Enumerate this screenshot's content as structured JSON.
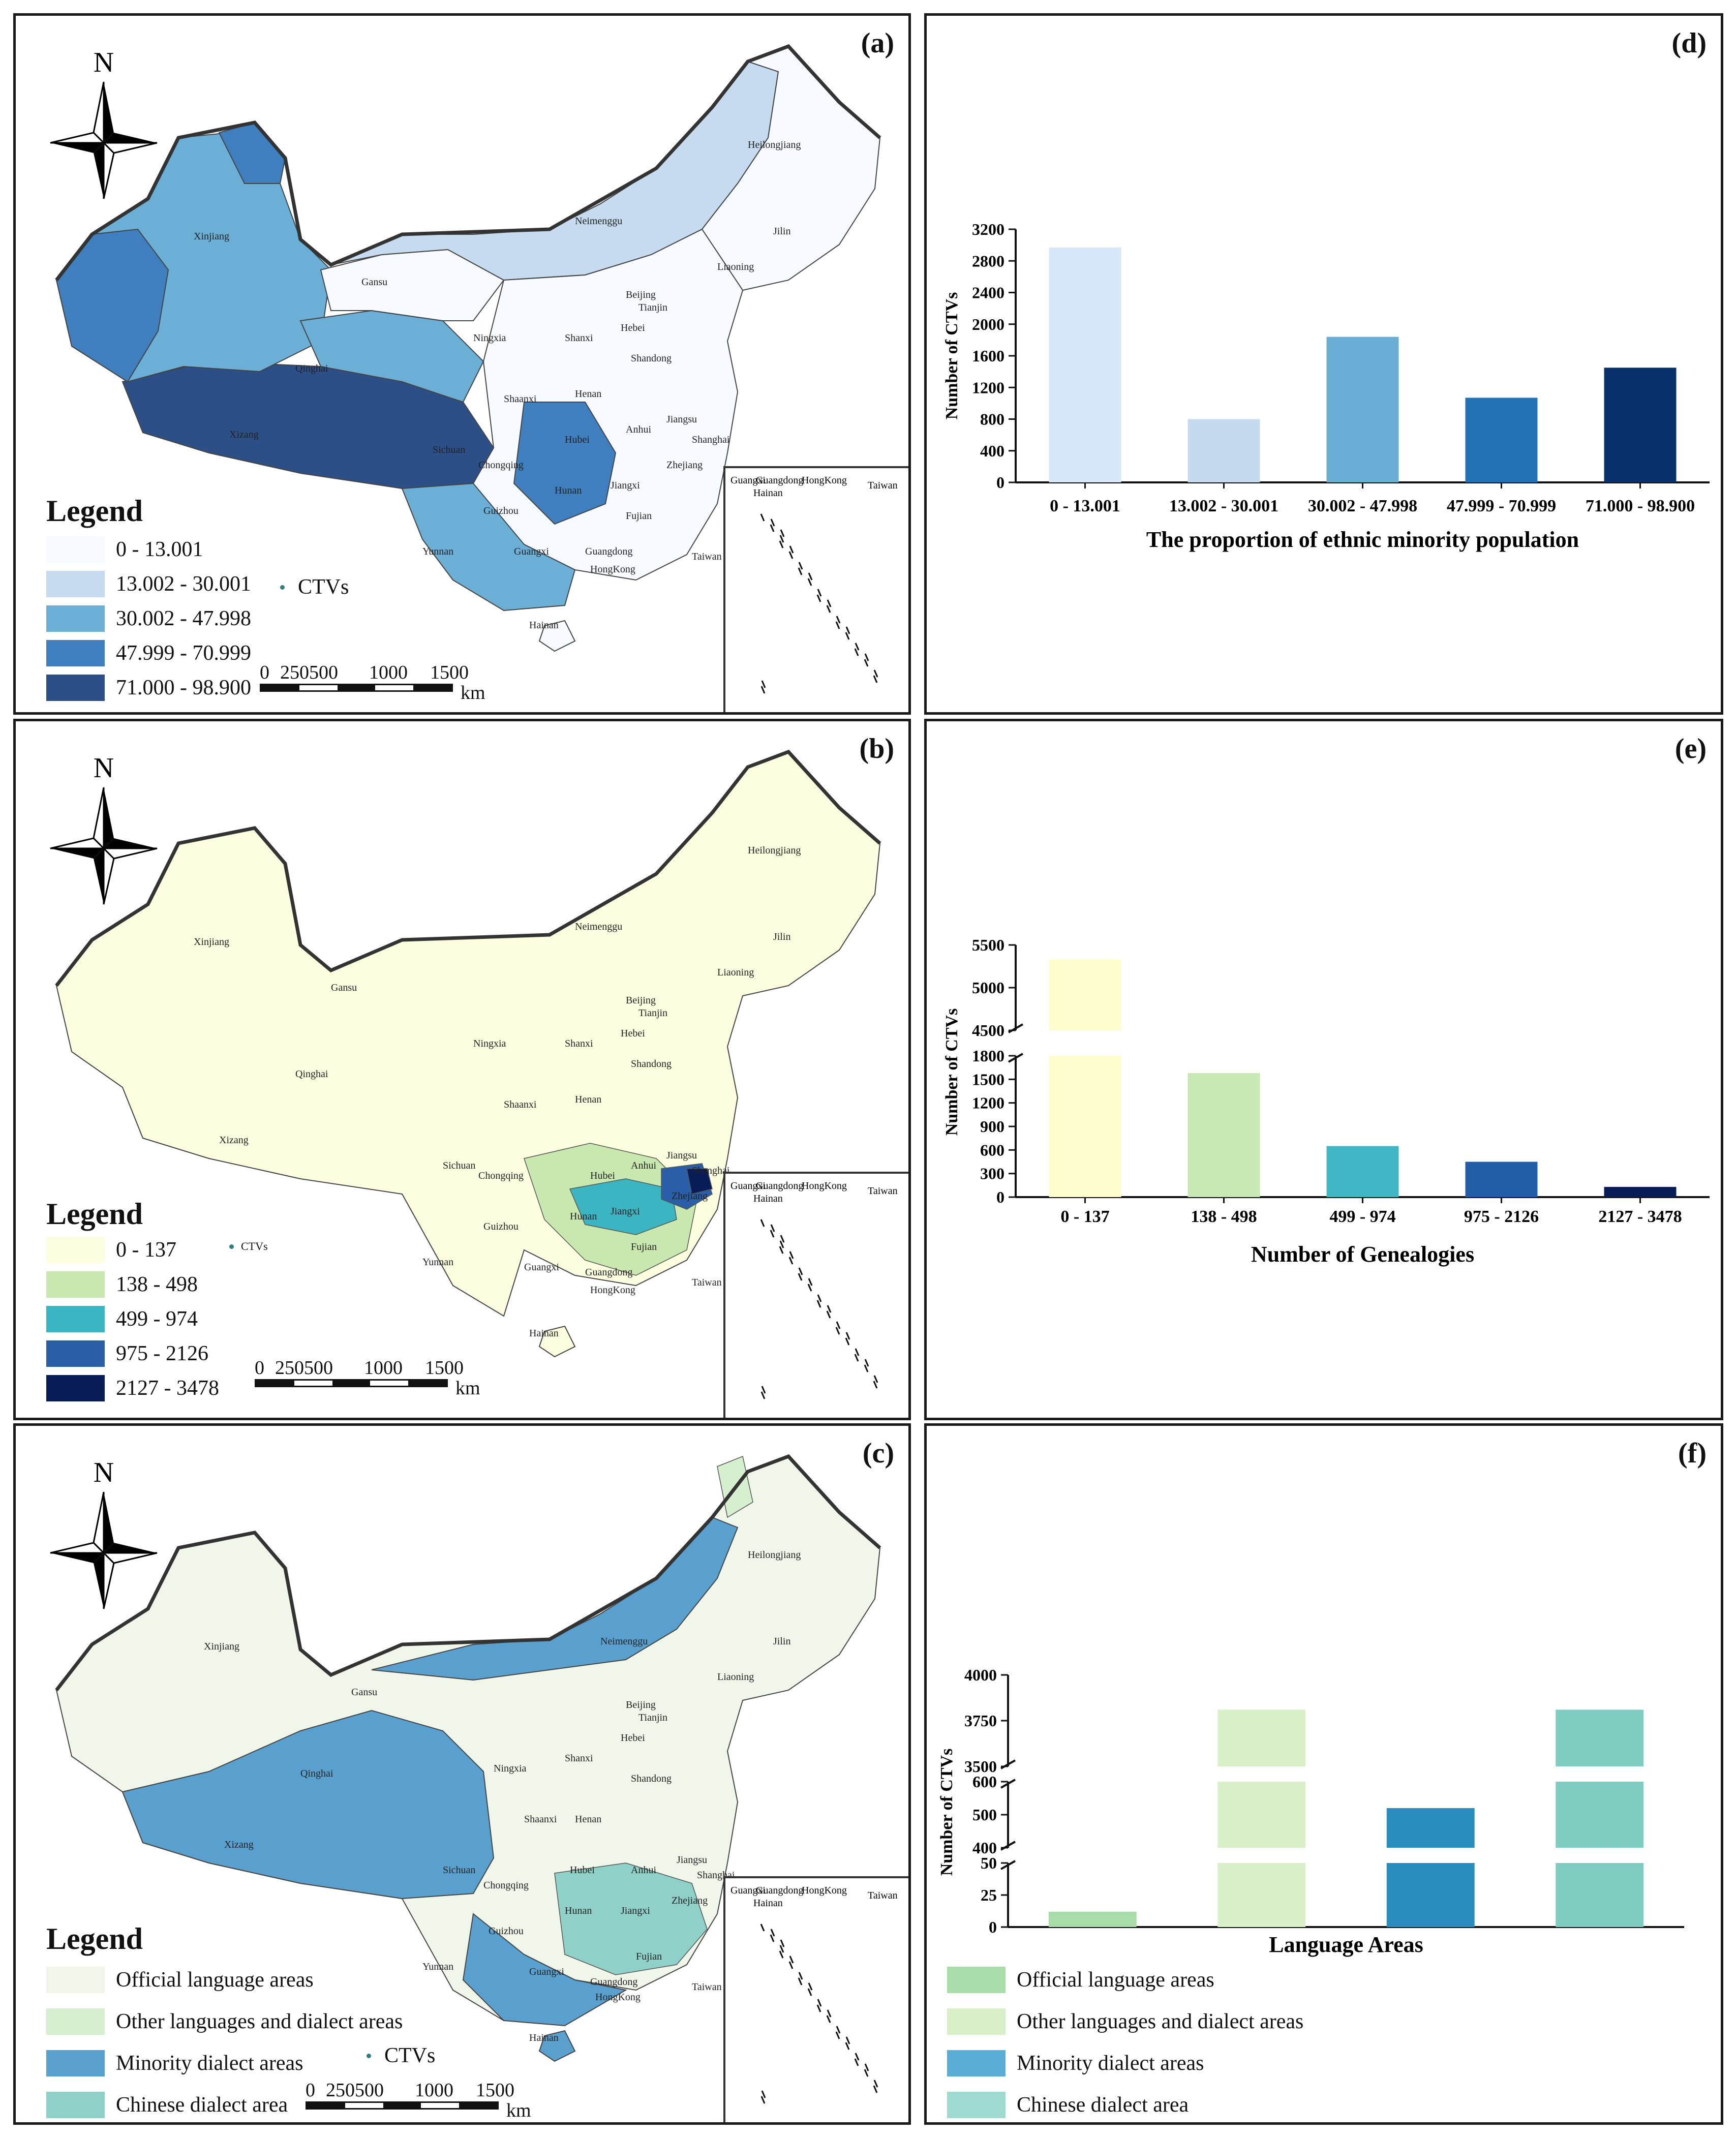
{
  "colors": {
    "a": [
      "#f7fbff",
      "#c6dbef",
      "#6baed6",
      "#3f7fbf",
      "#2b4f86"
    ],
    "b": [
      "#fdfde0",
      "#c9e8b0",
      "#3bb5c2",
      "#2a5ea8",
      "#081d58"
    ],
    "c": [
      "#f0f7ea",
      "#d5efcf",
      "#5aa0cf",
      "#8fd1c8"
    ],
    "d_bars": [
      "#d7e8fb",
      "#c6daef",
      "#6aaed6",
      "#2273b5",
      "#08306b"
    ],
    "e_bars": [
      "#fdfdce",
      "#c8e8b6",
      "#41b6c4",
      "#225ea8",
      "#081d58"
    ],
    "f_bars": [
      "#a8dca8",
      "#d9f0c8",
      "#2b8cbe",
      "#7fcdc0"
    ],
    "f_legend": [
      "#a8dca8",
      "#d9f0c8",
      "#5aaed6",
      "#9fdad0"
    ]
  },
  "map_common": {
    "north": "N",
    "ctvs_label": "CTVs",
    "scale_ticks": [
      "0",
      "250500",
      "1000",
      "1500"
    ],
    "scale_unit": "km",
    "inset_labels": [
      "Guangxi",
      "Guangdong",
      "Hainan",
      "HongKong",
      "Taiwan"
    ],
    "province_labels": [
      "Heilongjiang",
      "Jilin",
      "Liaoning",
      "Neimenggu",
      "Beijing",
      "Tianjin",
      "Hebei",
      "Shanxi",
      "Shandong",
      "Ningxia",
      "Gansu",
      "Xinjiang",
      "Qinghai",
      "Xizang",
      "Shaanxi",
      "Henan",
      "Sichuan",
      "Chongqing",
      "Hubei",
      "Anhui",
      "Jiangsu",
      "Shanghai",
      "Zhejiang",
      "Hunan",
      "Jiangxi",
      "Guizhou",
      "Yunnan",
      "Guangxi",
      "Guangdong",
      "Fujian",
      "Taiwan",
      "HongKong",
      "Hainan"
    ]
  },
  "panel_a": {
    "label": "(a)",
    "legend_title": "Legend",
    "classes": [
      "0 - 13.001",
      "13.002 - 30.001",
      "30.002 - 47.998",
      "47.999 - 70.999",
      "71.000 - 98.900"
    ]
  },
  "panel_b": {
    "label": "(b)",
    "legend_title": "Legend",
    "classes": [
      "0 - 137",
      "138 - 498",
      "499 - 974",
      "975 - 2126",
      "2127 - 3478"
    ]
  },
  "panel_c": {
    "label": "(c)",
    "legend_title": "Legend",
    "classes": [
      "Official language areas",
      "Other languages and dialect areas",
      "Minority dialect areas",
      "Chinese dialect area"
    ]
  },
  "panel_d": {
    "label": "(d)"
  },
  "panel_e": {
    "label": "(e)"
  },
  "panel_f": {
    "label": "(f)",
    "legend": [
      "Official language areas",
      "Other languages and dialect areas",
      "Minority dialect areas",
      "Chinese dialect area"
    ]
  },
  "chart_data": [
    {
      "panel": "d",
      "type": "bar",
      "categories": [
        "0 - 13.001",
        "13.002 - 30.001",
        "30.002 - 47.998",
        "47.999 - 70.999",
        "71.000 - 98.900"
      ],
      "values": [
        2970,
        800,
        1840,
        1070,
        1450
      ],
      "xlabel": "The proportion of ethnic minority population",
      "ylabel": "Number of CTVs",
      "ylim": [
        0,
        3200
      ],
      "yticks": [
        "0",
        "400",
        "800",
        "1200",
        "1600",
        "2000",
        "2400",
        "2800",
        "3200"
      ],
      "grid": false
    },
    {
      "panel": "e",
      "type": "bar",
      "categories": [
        "0 - 137",
        "138 - 498",
        "499 - 974",
        "975 - 2126",
        "2127 - 3478"
      ],
      "values": [
        5330,
        1580,
        650,
        450,
        130
      ],
      "xlabel": "Number of Genealogies",
      "ylabel": "Number of CTVs",
      "axis_break": {
        "lower": [
          0,
          1800
        ],
        "upper": [
          4500,
          5500
        ]
      },
      "yticks_lower": [
        "0",
        "300",
        "600",
        "900",
        "1200",
        "1500",
        "1800"
      ],
      "yticks_upper": [
        "4500",
        "5000",
        "5500"
      ],
      "grid": false
    },
    {
      "panel": "f",
      "type": "bar",
      "categories": [
        "Official language areas",
        "Other languages and dialect areas",
        "Minority dialect areas",
        "Chinese dialect area"
      ],
      "values": [
        12,
        3810,
        520,
        3810
      ],
      "xlabel": "Language Areas",
      "ylabel": "Number of CTVs",
      "axis_break": {
        "seg1": [
          0,
          50
        ],
        "seg2": [
          400,
          600
        ],
        "seg3": [
          3500,
          4000
        ]
      },
      "yticks_seg1": [
        "0",
        "25",
        "50"
      ],
      "yticks_seg2": [
        "400",
        "500",
        "600"
      ],
      "yticks_seg3": [
        "3500",
        "3750",
        "4000"
      ],
      "grid": false
    }
  ]
}
